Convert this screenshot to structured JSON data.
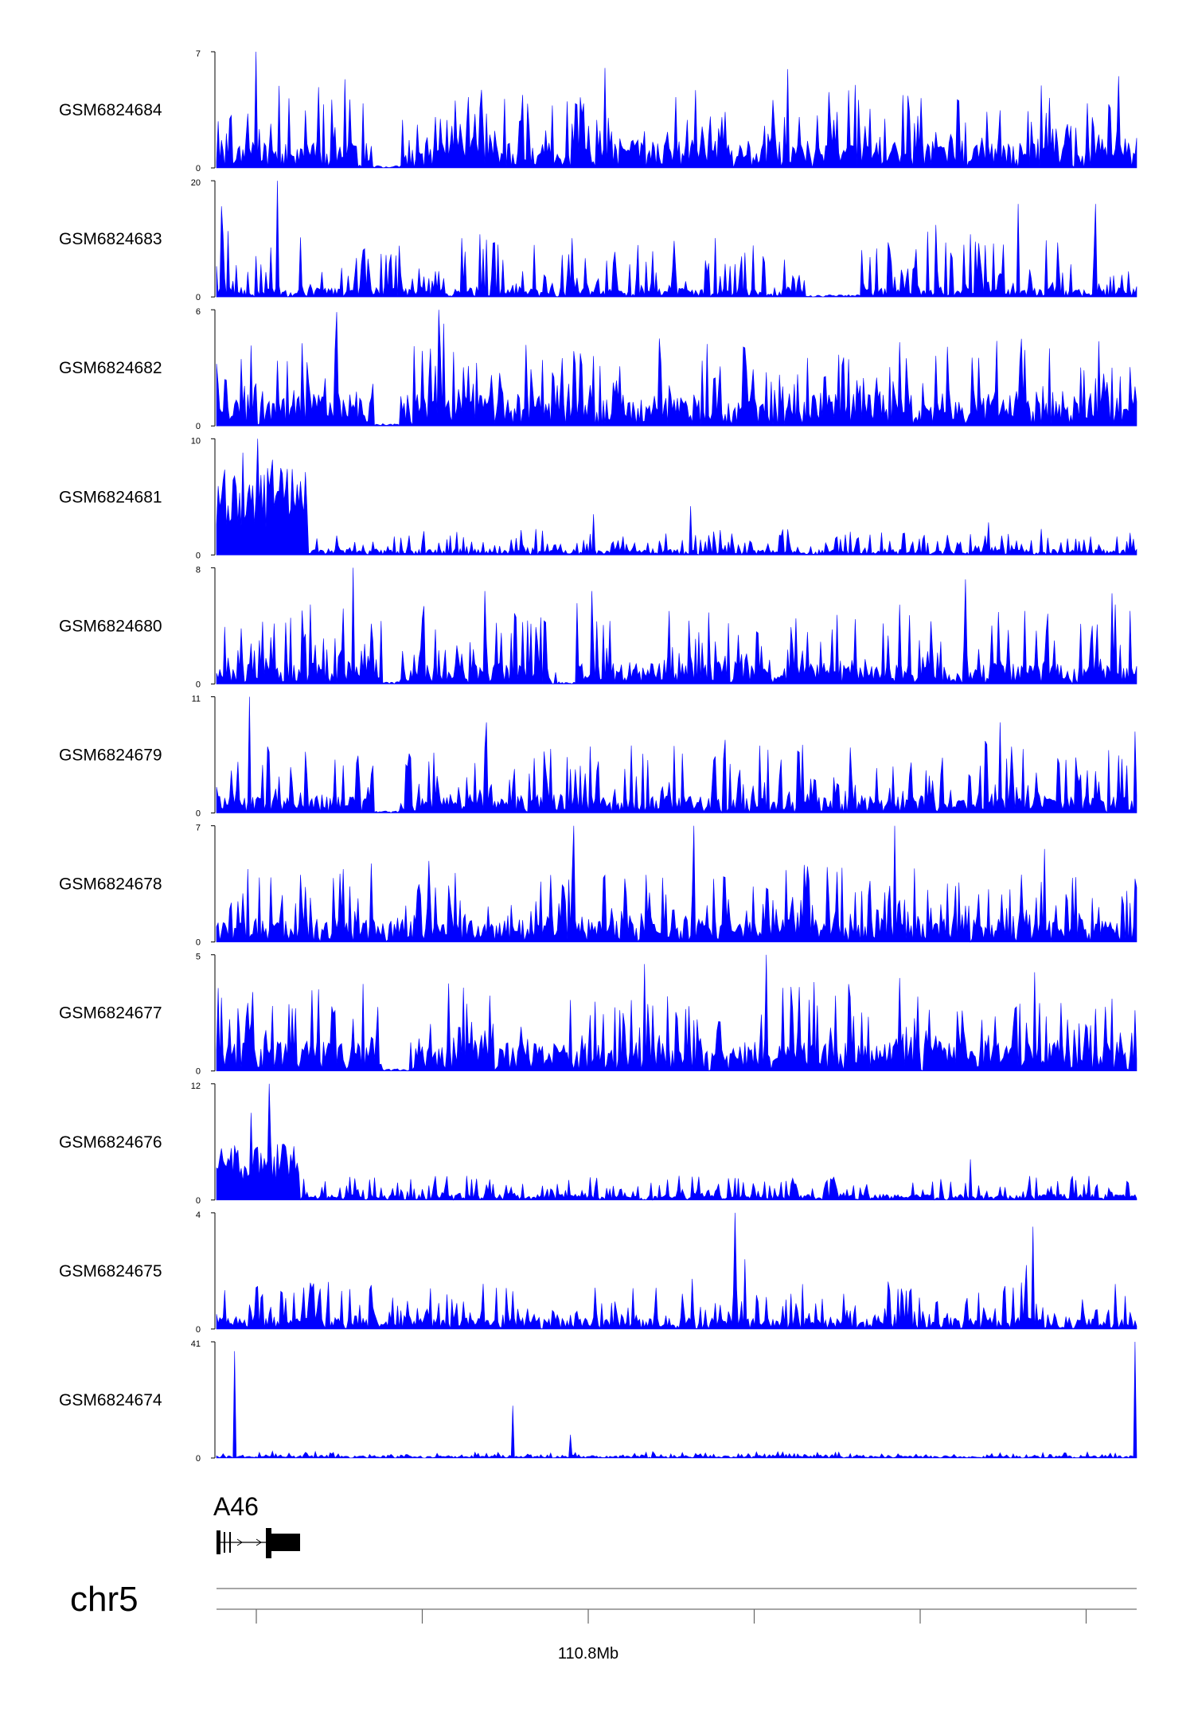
{
  "chart_data": {
    "type": "area",
    "title": "",
    "chromosome": "chr5",
    "gene_label": "A46",
    "x_axis": {
      "tick_labels": [
        {
          "tick_index": 2,
          "label": "110.8Mb"
        }
      ],
      "tick_count": 6
    },
    "series_color": "#0000ff",
    "grid": false,
    "tracks": [
      {
        "name": "GSM6824684",
        "ylim": [
          0,
          7
        ],
        "y_ticks": [
          "0",
          "7"
        ],
        "peaks": [
          [
            0.043,
            1.0
          ],
          [
            0.62,
            0.85
          ],
          [
            0.422,
            0.86
          ],
          [
            0.981,
            0.79
          ]
        ],
        "baseline": 0.22,
        "noise": 0.55,
        "gaps": [
          [
            0.17,
            0.2
          ]
        ]
      },
      {
        "name": "GSM6824683",
        "ylim": [
          0,
          20
        ],
        "y_ticks": [
          "0",
          "20"
        ],
        "peaks": [
          [
            0.066,
            1.0
          ],
          [
            0.006,
            0.78
          ],
          [
            0.871,
            0.8
          ],
          [
            0.781,
            0.62
          ],
          [
            0.955,
            0.8
          ]
        ],
        "baseline": 0.08,
        "noise": 0.5,
        "gaps": [
          [
            0.64,
            0.7
          ]
        ]
      },
      {
        "name": "GSM6824682",
        "ylim": [
          0,
          6
        ],
        "y_ticks": [
          "0",
          "6"
        ],
        "peaks": [
          [
            0.242,
            1.0
          ],
          [
            0.131,
            0.98
          ],
          [
            0.246,
            0.88
          ],
          [
            0.874,
            0.75
          ]
        ],
        "baseline": 0.28,
        "noise": 0.55,
        "gaps": [
          [
            0.17,
            0.2
          ]
        ]
      },
      {
        "name": "GSM6824681",
        "ylim": [
          0,
          10
        ],
        "y_ticks": [
          "0",
          "10"
        ],
        "peaks": [
          [
            0.045,
            1.0
          ],
          [
            0.028,
            0.88
          ],
          [
            0.06,
            0.82
          ],
          [
            0.516,
            0.42
          ],
          [
            0.41,
            0.35
          ],
          [
            0.839,
            0.28
          ]
        ],
        "baseline": 0.05,
        "noise": 0.18,
        "dense_region": [
          0.0,
          0.1,
          0.75
        ],
        "gaps": []
      },
      {
        "name": "GSM6824680",
        "ylim": [
          0,
          8
        ],
        "y_ticks": [
          "0",
          "8"
        ],
        "peaks": [
          [
            0.149,
            1.0
          ],
          [
            0.291,
            0.8
          ],
          [
            0.408,
            0.8
          ],
          [
            0.814,
            0.9
          ],
          [
            0.973,
            0.78
          ]
        ],
        "baseline": 0.18,
        "noise": 0.55,
        "gaps": [
          [
            0.18,
            0.2
          ],
          [
            0.37,
            0.39
          ]
        ]
      },
      {
        "name": "GSM6824679",
        "ylim": [
          0,
          11
        ],
        "y_ticks": [
          "0",
          "11"
        ],
        "peaks": [
          [
            0.036,
            1.0
          ],
          [
            0.294,
            0.78
          ],
          [
            0.852,
            0.78
          ],
          [
            0.999,
            0.7
          ]
        ],
        "baseline": 0.15,
        "noise": 0.5,
        "gaps": [
          [
            0.17,
            0.2
          ]
        ]
      },
      {
        "name": "GSM6824678",
        "ylim": [
          0,
          7
        ],
        "y_ticks": [
          "0",
          "7"
        ],
        "peaks": [
          [
            0.389,
            1.0
          ],
          [
            0.519,
            1.0
          ],
          [
            0.737,
            1.0
          ],
          [
            0.9,
            0.8
          ]
        ],
        "baseline": 0.2,
        "noise": 0.55,
        "gaps": []
      },
      {
        "name": "GSM6824677",
        "ylim": [
          0,
          5
        ],
        "y_ticks": [
          "0",
          "5"
        ],
        "peaks": [
          [
            0.597,
            1.0
          ],
          [
            0.465,
            0.92
          ],
          [
            0.889,
            0.85
          ],
          [
            0.742,
            0.8
          ]
        ],
        "baseline": 0.25,
        "noise": 0.55,
        "gaps": [
          [
            0.18,
            0.21
          ]
        ]
      },
      {
        "name": "GSM6824676",
        "ylim": [
          0,
          12
        ],
        "y_ticks": [
          "0",
          "12"
        ],
        "peaks": [
          [
            0.057,
            1.0
          ],
          [
            0.038,
            0.75
          ],
          [
            0.073,
            0.48
          ],
          [
            0.82,
            0.35
          ]
        ],
        "baseline": 0.05,
        "noise": 0.18,
        "dense_region": [
          0.0,
          0.09,
          0.5
        ],
        "gaps": []
      },
      {
        "name": "GSM6824675",
        "ylim": [
          0,
          4
        ],
        "y_ticks": [
          "0",
          "4"
        ],
        "peaks": [
          [
            0.564,
            1.0
          ],
          [
            0.888,
            0.88
          ],
          [
            0.575,
            0.6
          ],
          [
            0.88,
            0.55
          ]
        ],
        "baseline": 0.1,
        "noise": 0.35,
        "gaps": []
      },
      {
        "name": "GSM6824674",
        "ylim": [
          0,
          41
        ],
        "y_ticks": [
          "0",
          "41"
        ],
        "peaks": [
          [
            0.019,
            0.92
          ],
          [
            0.322,
            0.45
          ],
          [
            0.385,
            0.2
          ],
          [
            0.999,
            1.0
          ]
        ],
        "baseline": 0.02,
        "noise": 0.04,
        "gaps": []
      }
    ]
  }
}
